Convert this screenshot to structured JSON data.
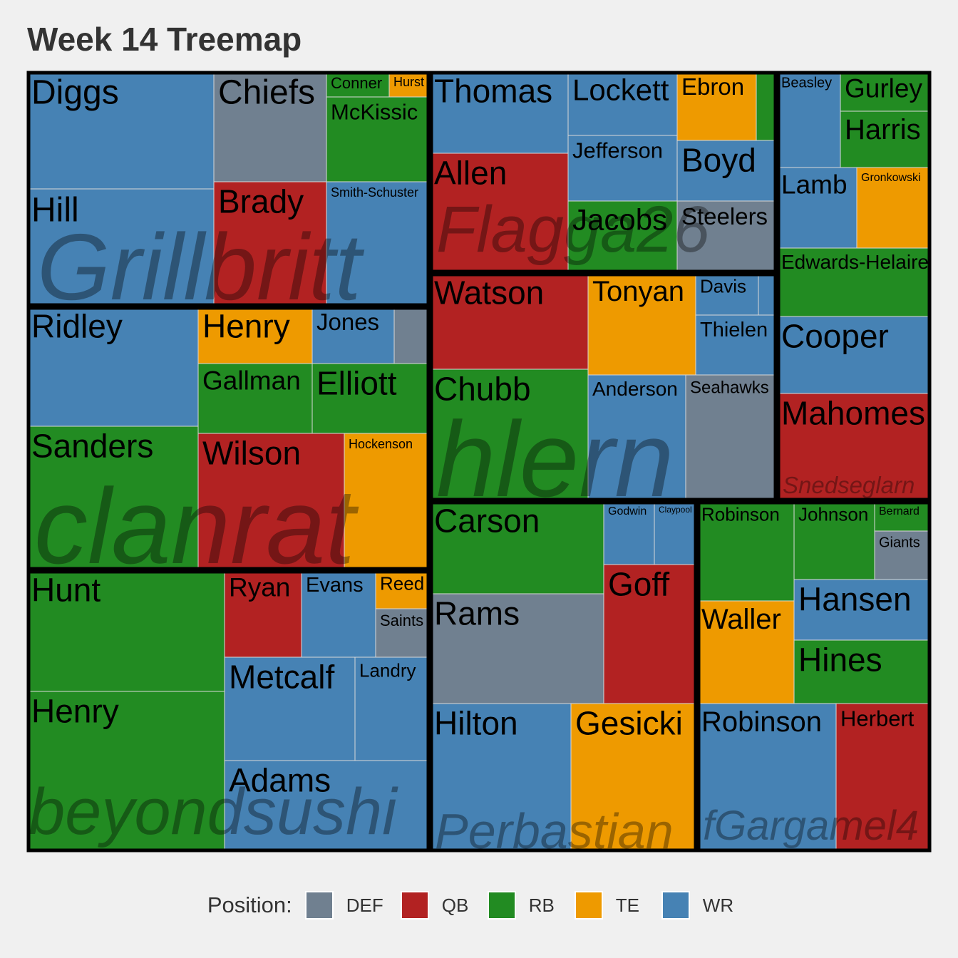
{
  "title": "Week 14 Treemap",
  "colors": {
    "DEF": "#708090",
    "QB": "#b22222",
    "RB": "#228b22",
    "TE": "#ee9a00",
    "WR": "#4682b4"
  },
  "legend": {
    "title": "Position:",
    "items": [
      {
        "label": "DEF",
        "position": "DEF"
      },
      {
        "label": "QB",
        "position": "QB"
      },
      {
        "label": "RB",
        "position": "RB"
      },
      {
        "label": "TE",
        "position": "TE"
      },
      {
        "label": "WR",
        "position": "WR"
      }
    ]
  },
  "chart_data": {
    "type": "treemap",
    "title": "Week 14 Treemap",
    "groups": [
      {
        "name": "Grillbritt",
        "tiles": [
          {
            "name": "Diggs",
            "position": "WR"
          },
          {
            "name": "Hill",
            "position": "WR"
          },
          {
            "name": "Chiefs",
            "position": "DEF"
          },
          {
            "name": "Brady",
            "position": "QB"
          },
          {
            "name": "Conner",
            "position": "RB"
          },
          {
            "name": "Hurst",
            "position": "TE"
          },
          {
            "name": "McKissic",
            "position": "RB"
          },
          {
            "name": "Smith-Schuster",
            "position": "WR"
          }
        ]
      },
      {
        "name": "clanrat",
        "tiles": [
          {
            "name": "Ridley",
            "position": "WR"
          },
          {
            "name": "Sanders",
            "position": "RB"
          },
          {
            "name": "Henry",
            "position": "TE"
          },
          {
            "name": "Jones",
            "position": "WR"
          },
          {
            "name": "",
            "position": "DEF"
          },
          {
            "name": "Gallman",
            "position": "RB"
          },
          {
            "name": "Elliott",
            "position": "RB"
          },
          {
            "name": "Wilson",
            "position": "QB"
          },
          {
            "name": "Hockenson",
            "position": "TE"
          }
        ]
      },
      {
        "name": "beyondsushi",
        "tiles": [
          {
            "name": "Hunt",
            "position": "RB"
          },
          {
            "name": "Henry",
            "position": "RB"
          },
          {
            "name": "Ryan",
            "position": "QB"
          },
          {
            "name": "Evans",
            "position": "WR"
          },
          {
            "name": "Reed",
            "position": "TE"
          },
          {
            "name": "Saints",
            "position": "DEF"
          },
          {
            "name": "Metcalf",
            "position": "WR"
          },
          {
            "name": "Landry",
            "position": "WR"
          },
          {
            "name": "Adams",
            "position": "WR"
          }
        ]
      },
      {
        "name": "Flagga26",
        "tiles": [
          {
            "name": "Thomas",
            "position": "WR"
          },
          {
            "name": "Allen",
            "position": "QB"
          },
          {
            "name": "Lockett",
            "position": "WR"
          },
          {
            "name": "Ebron",
            "position": "TE"
          },
          {
            "name": "",
            "position": "RB"
          },
          {
            "name": "Jefferson",
            "position": "WR"
          },
          {
            "name": "Boyd",
            "position": "WR"
          },
          {
            "name": "Jacobs",
            "position": "RB"
          },
          {
            "name": "Steelers",
            "position": "DEF"
          }
        ]
      },
      {
        "name": "hlern",
        "tiles": [
          {
            "name": "Watson",
            "position": "QB"
          },
          {
            "name": "Chubb",
            "position": "RB"
          },
          {
            "name": "Tonyan",
            "position": "TE"
          },
          {
            "name": "Davis",
            "position": "WR"
          },
          {
            "name": "",
            "position": "WR"
          },
          {
            "name": "Thielen",
            "position": "WR"
          },
          {
            "name": "Anderson",
            "position": "WR"
          },
          {
            "name": "Seahawks",
            "position": "DEF"
          }
        ]
      },
      {
        "name": "Snedseglarn",
        "tiles": [
          {
            "name": "Beasley",
            "position": "WR"
          },
          {
            "name": "Gurley",
            "position": "RB"
          },
          {
            "name": "Harris",
            "position": "RB"
          },
          {
            "name": "Lamb",
            "position": "WR"
          },
          {
            "name": "Gronkowski",
            "position": "TE"
          },
          {
            "name": "Edwards-Helaire",
            "position": "RB"
          },
          {
            "name": "Cooper",
            "position": "WR"
          },
          {
            "name": "Mahomes",
            "position": "QB"
          }
        ]
      },
      {
        "name": "Perbastian",
        "tiles": [
          {
            "name": "Carson",
            "position": "RB"
          },
          {
            "name": "Godwin",
            "position": "WR"
          },
          {
            "name": "Claypool",
            "position": "WR"
          },
          {
            "name": "Rams",
            "position": "DEF"
          },
          {
            "name": "Goff",
            "position": "QB"
          },
          {
            "name": "Hilton",
            "position": "WR"
          },
          {
            "name": "Gesicki",
            "position": "TE"
          }
        ]
      },
      {
        "name": "fGargamel4",
        "tiles": [
          {
            "name": "Robinson",
            "position": "RB"
          },
          {
            "name": "Johnson",
            "position": "RB"
          },
          {
            "name": "Bernard",
            "position": "RB"
          },
          {
            "name": "Giants",
            "position": "DEF"
          },
          {
            "name": "Waller",
            "position": "TE"
          },
          {
            "name": "Hansen",
            "position": "WR"
          },
          {
            "name": "Hines",
            "position": "RB"
          },
          {
            "name": "Robinson",
            "position": "WR"
          },
          {
            "name": "Herbert",
            "position": "QB"
          }
        ]
      }
    ]
  }
}
